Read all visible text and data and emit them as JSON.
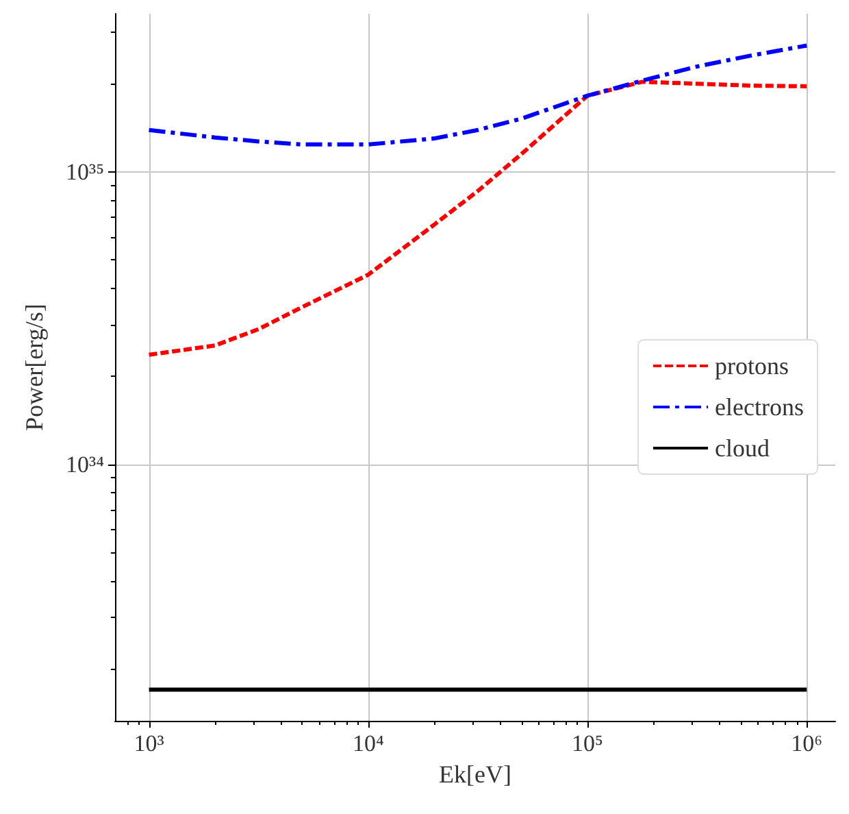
{
  "chart_data": {
    "type": "line",
    "xlabel": "Ek[eV]",
    "ylabel": "Power[erg/s]",
    "log": "xy",
    "grid": true,
    "legend": "right",
    "marker": "none",
    "x": [
      1000,
      2000,
      3162,
      5000,
      10000,
      20000,
      31623,
      50000,
      100000,
      177828,
      316228,
      562341,
      1000000
    ],
    "xlim": [
      700,
      1350000
    ],
    "ylim": [
      1.33e+33,
      3.47e+35
    ],
    "xticks": [
      {
        "value": 1000,
        "label": "10³"
      },
      {
        "value": 10000,
        "label": "10⁴"
      },
      {
        "value": 100000,
        "label": "10⁵"
      },
      {
        "value": 1000000,
        "label": "10⁶"
      }
    ],
    "yticks": [
      {
        "value": 1e+34,
        "label": "10³⁴"
      },
      {
        "value": 1e+35,
        "label": "10³⁵"
      }
    ],
    "series": [
      {
        "name": "protons",
        "color": "#ff0000",
        "line_style": "dashed",
        "values": [
          2.37e+34,
          2.55e+34,
          2.9e+34,
          3.45e+34,
          4.45e+34,
          6.6e+34,
          8.6e+34,
          1.15e+35,
          1.82e+35,
          2.03e+35,
          2e+35,
          1.97e+35,
          1.96e+35
        ]
      },
      {
        "name": "electrons",
        "color": "#0000ff",
        "line_style": "dashdot",
        "values": [
          1.39e+35,
          1.31e+35,
          1.27e+35,
          1.24e+35,
          1.24e+35,
          1.3e+35,
          1.39e+35,
          1.52e+35,
          1.82e+35,
          2.05e+35,
          2.29e+35,
          2.5e+35,
          2.7e+35
        ]
      },
      {
        "name": "cloud",
        "color": "#000000",
        "line_style": "solid",
        "values": [
          1.7e+33,
          1.7e+33,
          1.7e+33,
          1.7e+33,
          1.7e+33,
          1.7e+33,
          1.7e+33,
          1.7e+33,
          1.7e+33,
          1.7e+33,
          1.7e+33,
          1.7e+33,
          1.7e+33
        ]
      }
    ]
  }
}
